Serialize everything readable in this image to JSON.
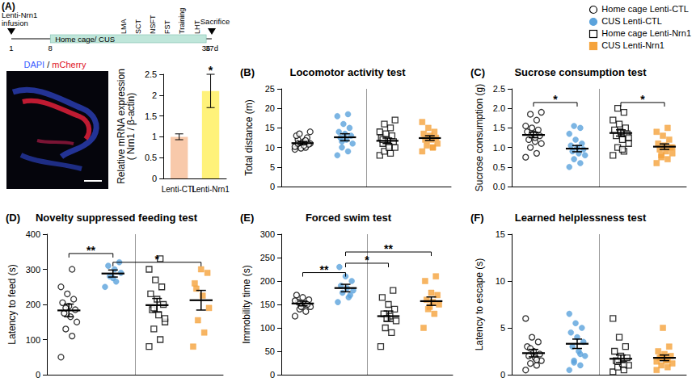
{
  "timeline": {
    "panel": "(A)",
    "infusion_label": [
      "Lenti-Nrn1",
      "infusion"
    ],
    "days": [
      {
        "day": 1,
        "label": "1"
      },
      {
        "day": 8,
        "label": "8"
      },
      {
        "day": 36,
        "label": "36"
      },
      {
        "day": 37,
        "label": "37d"
      }
    ],
    "period": {
      "from": 8,
      "to": 36,
      "label": "Home cage/ CUS",
      "color": "#bfe6da"
    },
    "tests": [
      "LMA",
      "SCT",
      "NSFT",
      "FST",
      "Training",
      "LHT"
    ],
    "end_label": "Sacrifice"
  },
  "image": {
    "label_parts": [
      {
        "text": "DAPI",
        "color": "#3d5cff"
      },
      {
        "text": " / ",
        "color": "#000000"
      },
      {
        "text": "mCherry",
        "color": "#e0101e"
      }
    ]
  },
  "chart_data": [
    {
      "type": "bar",
      "categories": [
        "Lenti-CTL",
        "Lenti-Nrn1"
      ],
      "values": [
        1.0,
        2.1
      ],
      "errors": [
        0.07,
        0.4
      ],
      "colors": [
        "#f8c9aa",
        "#fff27a"
      ],
      "ylabel": "Relative mRNA expression\n( Nrn1 / β-actin)",
      "ylim": [
        0,
        2.5
      ],
      "yticks": [
        0,
        0.5,
        1,
        1.5,
        2,
        2.5
      ],
      "grid": false,
      "annotations": [
        {
          "index": 1,
          "y": 2.58,
          "text": "*"
        }
      ]
    },
    {
      "type": "dotplot",
      "panel": "(B)",
      "title": "Locomotor activity test",
      "ylabel": "Total distance (m)",
      "ylim": [
        0,
        25
      ],
      "yticks": [
        0,
        5,
        10,
        15,
        20,
        25
      ],
      "grid": false,
      "tick_labels": "y",
      "legend": "top-right",
      "series": [
        {
          "name": "Home cage Lenti-CTL",
          "color": "#000000",
          "marker": "open-circle",
          "mean": 11.1,
          "sem": 0.4,
          "values": [
            9.5,
            10,
            10.5,
            11,
            11.5,
            12,
            10.8,
            11.2,
            13,
            12.5,
            9.8,
            10.2,
            11.8,
            13.5,
            14,
            10.5,
            11
          ]
        },
        {
          "name": "CUS Lenti-CTL",
          "color": "#5ba3dc",
          "marker": "circle",
          "mean": 12.6,
          "sem": 0.9,
          "values": [
            8,
            9,
            10,
            11,
            12,
            12.5,
            13,
            13.5,
            14,
            15,
            16,
            18,
            18.5,
            11.5
          ]
        },
        {
          "name": "Home cage Lenti-Nrn1",
          "color": "#000000",
          "marker": "open-square",
          "mean": 11.7,
          "sem": 0.7,
          "values": [
            8,
            8.5,
            9,
            10,
            10.5,
            11,
            11.5,
            12,
            12.5,
            13,
            13.5,
            14,
            15,
            16,
            17,
            10,
            12
          ]
        },
        {
          "name": "CUS Lenti-Nrn1",
          "color": "#f5a33c",
          "marker": "square",
          "mean": 12.4,
          "sem": 0.6,
          "values": [
            9,
            10,
            10.5,
            11,
            12,
            12,
            12.5,
            13,
            13.5,
            14,
            15,
            16.5,
            10
          ]
        }
      ]
    },
    {
      "type": "dotplot",
      "panel": "(C)",
      "title": "Sucrose consumption test",
      "ylabel": "Sucrose consumption (g)",
      "ylim": [
        0,
        2.5
      ],
      "yticks": [
        {
          "value": 0,
          "label": "0.0"
        },
        {
          "value": 0.5,
          "label": "0.5"
        },
        {
          "value": 1,
          "label": "1.0"
        },
        {
          "value": 1.5,
          "label": "1.5"
        },
        {
          "value": 2,
          "label": "2.0"
        },
        {
          "value": 2.5,
          "label": "2.5"
        }
      ],
      "grid": false,
      "tick_labels": "y",
      "annotations": [
        {
          "from": 1,
          "to": 2,
          "y": 2.15,
          "text": "*"
        },
        {
          "from": 3,
          "to": 4,
          "y": 2.15,
          "text": "*"
        }
      ],
      "series": [
        {
          "name": "Home cage Lenti-CTL",
          "color": "#000000",
          "marker": "open-circle",
          "mean": 1.32,
          "sem": 0.07,
          "values": [
            0.75,
            0.85,
            1.0,
            1.1,
            1.15,
            1.2,
            1.3,
            1.35,
            1.4,
            1.45,
            1.5,
            1.55,
            1.7,
            1.85,
            1.9,
            1.25
          ]
        },
        {
          "name": "CUS Lenti-CTL",
          "color": "#5ba3dc",
          "marker": "circle",
          "mean": 0.97,
          "sem": 0.08,
          "values": [
            0.5,
            0.6,
            0.7,
            0.8,
            0.85,
            0.9,
            0.95,
            1.0,
            1.05,
            1.1,
            1.2,
            1.35,
            1.5,
            1.55
          ]
        },
        {
          "name": "Home cage Lenti-Nrn1",
          "color": "#000000",
          "marker": "open-square",
          "mean": 1.37,
          "sem": 0.08,
          "values": [
            0.8,
            0.9,
            1.0,
            1.1,
            1.2,
            1.3,
            1.35,
            1.4,
            1.45,
            1.5,
            1.6,
            1.7,
            1.9,
            2.0,
            1.25,
            0.95
          ]
        },
        {
          "name": "CUS Lenti-Nrn1",
          "color": "#f5a33c",
          "marker": "square",
          "mean": 1.02,
          "sem": 0.07,
          "values": [
            0.6,
            0.7,
            0.8,
            0.85,
            0.9,
            0.95,
            1.0,
            1.05,
            1.1,
            1.2,
            1.3,
            1.4,
            1.5,
            0.75,
            1.0
          ]
        }
      ]
    },
    {
      "type": "dotplot",
      "panel": "(D)",
      "title": "Novelty suppressed feeding test",
      "ylabel": "Latency to feed (s)",
      "ylim": [
        0,
        400
      ],
      "yticks": [
        0,
        100,
        200,
        300,
        400
      ],
      "grid": false,
      "tick_labels": "y",
      "annotations": [
        {
          "from": 1,
          "to": 2,
          "y": 345,
          "text": "**"
        },
        {
          "from": 2,
          "to": 4,
          "y": 320,
          "text": "*"
        }
      ],
      "series": [
        {
          "name": "Home cage Lenti-CTL",
          "color": "#000000",
          "marker": "open-circle",
          "mean": 183,
          "sem": 18,
          "values": [
            50,
            110,
            130,
            150,
            165,
            175,
            185,
            195,
            205,
            215,
            230,
            250,
            300,
            190
          ]
        },
        {
          "name": "CUS Lenti-CTL",
          "color": "#5ba3dc",
          "marker": "circle",
          "mean": 288,
          "sem": 10,
          "values": [
            250,
            265,
            280,
            290,
            300,
            310,
            320,
            275
          ]
        },
        {
          "name": "Home cage Lenti-Nrn1",
          "color": "#000000",
          "marker": "open-square",
          "mean": 198,
          "sem": 19,
          "values": [
            80,
            100,
            130,
            150,
            170,
            185,
            200,
            215,
            230,
            250,
            270,
            300,
            330,
            190,
            160
          ]
        },
        {
          "name": "CUS Lenti-Nrn1",
          "color": "#f5a33c",
          "marker": "square",
          "mean": 212,
          "sem": 28,
          "values": [
            80,
            120,
            155,
            190,
            225,
            245,
            290,
            300,
            260
          ]
        }
      ]
    },
    {
      "type": "dotplot",
      "panel": "(E)",
      "title": "Forced swim test",
      "ylabel": "Immobility time (s)",
      "ylim": [
        0,
        300
      ],
      "yticks": [
        0,
        50,
        100,
        150,
        200,
        250,
        300
      ],
      "grid": false,
      "tick_labels": "y",
      "annotations": [
        {
          "from": 1,
          "to": 2,
          "y": 218,
          "text": "**"
        },
        {
          "from": 2,
          "to": 3,
          "y": 238,
          "text": "*"
        },
        {
          "from": 2,
          "to": 4,
          "y": 262,
          "text": "**"
        }
      ],
      "series": [
        {
          "name": "Home cage Lenti-CTL",
          "color": "#000000",
          "marker": "open-circle",
          "mean": 152,
          "sem": 5,
          "values": [
            125,
            135,
            140,
            145,
            150,
            155,
            160,
            165,
            170,
            150,
            145,
            158
          ]
        },
        {
          "name": "CUS Lenti-CTL",
          "color": "#5ba3dc",
          "marker": "circle",
          "mean": 185,
          "sem": 8,
          "values": [
            155,
            165,
            175,
            180,
            185,
            190,
            200,
            210,
            230,
            170
          ]
        },
        {
          "name": "Home cage Lenti-Nrn1",
          "color": "#000000",
          "marker": "open-square",
          "mean": 125,
          "sem": 11,
          "values": [
            60,
            90,
            100,
            115,
            125,
            130,
            140,
            150,
            165,
            180,
            120
          ]
        },
        {
          "name": "CUS Lenti-Nrn1",
          "color": "#f5a33c",
          "marker": "square",
          "mean": 157,
          "sem": 9,
          "values": [
            100,
            130,
            140,
            150,
            155,
            160,
            170,
            175,
            200,
            210,
            145
          ]
        }
      ]
    },
    {
      "type": "dotplot",
      "panel": "(F)",
      "title": "Learned helplessness test",
      "ylabel": "Latency to escape (s)",
      "ylim": [
        0,
        15
      ],
      "yticks": [
        0,
        5,
        10,
        15
      ],
      "grid": false,
      "tick_labels": "y",
      "series": [
        {
          "name": "Home cage Lenti-CTL",
          "color": "#000000",
          "marker": "open-circle",
          "mean": 2.3,
          "sem": 0.4,
          "values": [
            0.5,
            1,
            1.2,
            1.5,
            1.8,
            2,
            2.2,
            2.5,
            3,
            3.5,
            4,
            6,
            1.6,
            2.8
          ]
        },
        {
          "name": "CUS Lenti-CTL",
          "color": "#5ba3dc",
          "marker": "circle",
          "mean": 3.3,
          "sem": 0.5,
          "values": [
            0.5,
            1,
            1.5,
            2,
            2.5,
            3,
            3.5,
            4,
            4.5,
            5,
            5.5,
            6.5,
            2.2,
            1.3
          ]
        },
        {
          "name": "Home cage Lenti-Nrn1",
          "color": "#000000",
          "marker": "open-square",
          "mean": 1.7,
          "sem": 0.4,
          "values": [
            0.3,
            0.5,
            0.8,
            1,
            1.2,
            1.5,
            1.8,
            2,
            2.5,
            3,
            4,
            6,
            1.1,
            1.4
          ]
        },
        {
          "name": "CUS Lenti-Nrn1",
          "color": "#f5a33c",
          "marker": "square",
          "mean": 1.8,
          "sem": 0.3,
          "values": [
            0.5,
            0.8,
            1,
            1.2,
            1.5,
            1.8,
            2,
            2.2,
            2.5,
            3,
            5,
            1.4,
            1.6,
            1.9
          ]
        }
      ]
    }
  ]
}
